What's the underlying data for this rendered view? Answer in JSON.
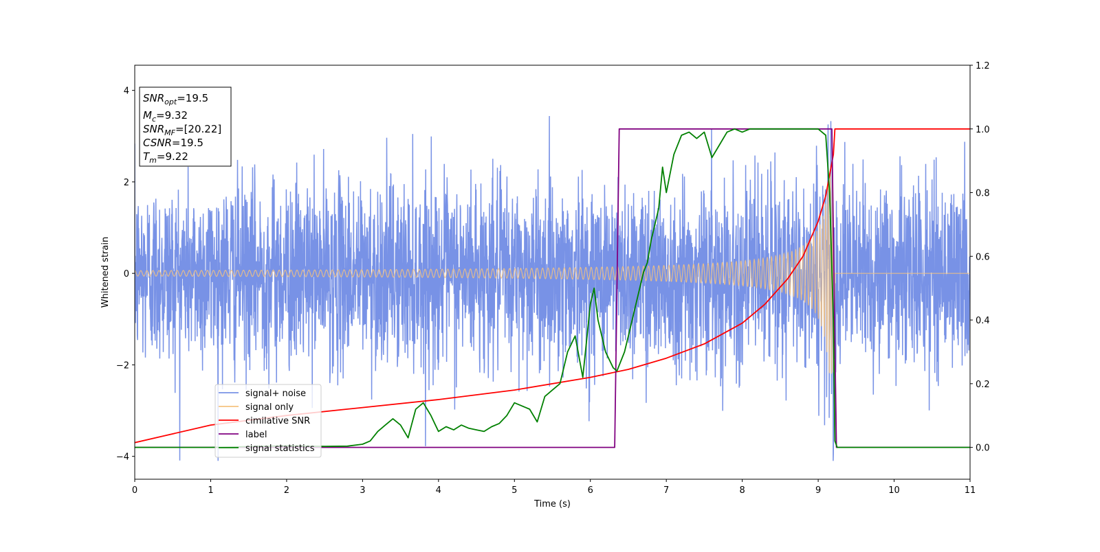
{
  "chart_data": {
    "type": "line",
    "xlabel": "Time (s)",
    "ylabel": "Whitened strain",
    "xlim": [
      0,
      11
    ],
    "ylim_left": [
      -4.5,
      4.55
    ],
    "ylim_right": [
      -0.1,
      1.2
    ],
    "x_ticks": [
      "0",
      "1",
      "2",
      "3",
      "4",
      "5",
      "6",
      "7",
      "8",
      "9",
      "10",
      "11"
    ],
    "x_tick_values": [
      0,
      1,
      2,
      3,
      4,
      5,
      6,
      7,
      8,
      9,
      10,
      11
    ],
    "y_left_ticks": [
      "−4",
      "−2",
      "0",
      "2",
      "4"
    ],
    "y_left_tick_values": [
      -4,
      -2,
      0,
      2,
      4
    ],
    "y_right_ticks": [
      "0.0",
      "0.2",
      "0.4",
      "0.6",
      "0.8",
      "1.0",
      "1.2"
    ],
    "y_right_tick_values": [
      0.0,
      0.2,
      0.4,
      0.6,
      0.8,
      1.0,
      1.2
    ],
    "info_box": {
      "line1": "=19.5",
      "line2": "=9.32",
      "line3": "=[20.22]",
      "line4": "=19.5",
      "line5": "=9.22"
    },
    "legend": {
      "placement": "lower-left",
      "entries": [
        "signal+ noise",
        "signal only",
        "cimilative SNR",
        "label",
        "signal statistics"
      ]
    },
    "series": [
      {
        "name": "signal+ noise",
        "axis": "left",
        "color": "#7892e6",
        "description_values": {
          "t_start": 0,
          "t_end": 11,
          "noise_sigma": 1.0,
          "max_peak": 4.18
        }
      },
      {
        "name": "signal only",
        "axis": "left",
        "color": "#f5c27f",
        "chirp": {
          "t_start": 0,
          "t_merge": 9.22,
          "amp_start": 0.06,
          "amp_merge": 2.2
        }
      },
      {
        "name": "cimilative SNR",
        "axis": "right",
        "color": "#ff0000",
        "x": [
          0,
          1,
          2,
          3,
          4,
          5,
          6,
          6.5,
          7,
          7.5,
          8,
          8.3,
          8.6,
          8.8,
          9.0,
          9.1,
          9.2,
          9.22,
          11
        ],
        "values": [
          0.015,
          0.07,
          0.1,
          0.125,
          0.15,
          0.18,
          0.22,
          0.245,
          0.28,
          0.325,
          0.39,
          0.45,
          0.53,
          0.6,
          0.71,
          0.79,
          0.92,
          1.0,
          1.0
        ]
      },
      {
        "name": "label",
        "axis": "right",
        "color": "#800080",
        "x": [
          0,
          6.32,
          6.38,
          9.18,
          9.24,
          11
        ],
        "values": [
          0.0,
          0.0,
          1.0,
          1.0,
          0.0,
          0.0
        ]
      },
      {
        "name": "signal statistics",
        "axis": "right",
        "color": "#008000",
        "x": [
          0,
          1,
          2,
          2.5,
          2.8,
          3.0,
          3.1,
          3.2,
          3.3,
          3.4,
          3.5,
          3.6,
          3.7,
          3.8,
          3.85,
          3.9,
          4.0,
          4.1,
          4.2,
          4.3,
          4.4,
          4.5,
          4.6,
          4.7,
          4.8,
          4.9,
          5.0,
          5.1,
          5.2,
          5.3,
          5.4,
          5.5,
          5.6,
          5.7,
          5.8,
          5.9,
          6.0,
          6.05,
          6.1,
          6.2,
          6.3,
          6.35,
          6.45,
          6.5,
          6.6,
          6.7,
          6.75,
          6.8,
          6.9,
          6.95,
          7.0,
          7.1,
          7.2,
          7.3,
          7.4,
          7.5,
          7.6,
          7.7,
          7.8,
          7.9,
          8.0,
          8.1,
          8.2,
          8.5,
          9.0,
          9.1,
          9.15,
          9.2,
          9.22,
          9.25,
          11
        ],
        "values": [
          0.0,
          0.0,
          0.005,
          0.003,
          0.004,
          0.01,
          0.02,
          0.05,
          0.07,
          0.09,
          0.07,
          0.03,
          0.12,
          0.14,
          0.12,
          0.1,
          0.05,
          0.065,
          0.055,
          0.07,
          0.06,
          0.055,
          0.05,
          0.065,
          0.075,
          0.1,
          0.14,
          0.13,
          0.12,
          0.08,
          0.16,
          0.18,
          0.2,
          0.3,
          0.35,
          0.22,
          0.45,
          0.5,
          0.4,
          0.3,
          0.25,
          0.24,
          0.3,
          0.35,
          0.45,
          0.55,
          0.58,
          0.65,
          0.75,
          0.88,
          0.8,
          0.92,
          0.98,
          0.99,
          0.97,
          0.99,
          0.91,
          0.95,
          0.99,
          1.0,
          0.99,
          1.0,
          1.0,
          1.0,
          1.0,
          0.98,
          0.8,
          0.4,
          0.02,
          0.0,
          0.0
        ]
      }
    ]
  }
}
